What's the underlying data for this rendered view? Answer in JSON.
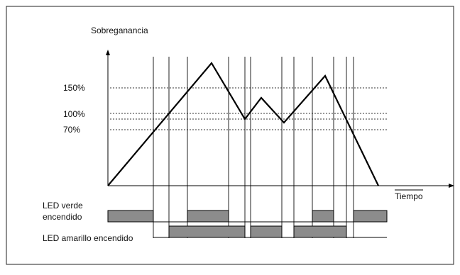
{
  "diagram": {
    "y_axis_label": "Sobreganancia",
    "x_axis_label": "Tiempo",
    "thresholds": [
      {
        "label": "150%",
        "value": 150
      },
      {
        "label": "100%",
        "value": 100
      },
      {
        "label": "70%",
        "value": 70
      }
    ],
    "led_green_label_line1": "LED verde",
    "led_green_label_line2": "encendido",
    "led_yellow_label": "LED amarillo encendido",
    "colors": {
      "frame": "#222222",
      "curve": "#000000",
      "led_bar_fill": "#8c8c8c",
      "dotted_line": "#333333"
    }
  }
}
